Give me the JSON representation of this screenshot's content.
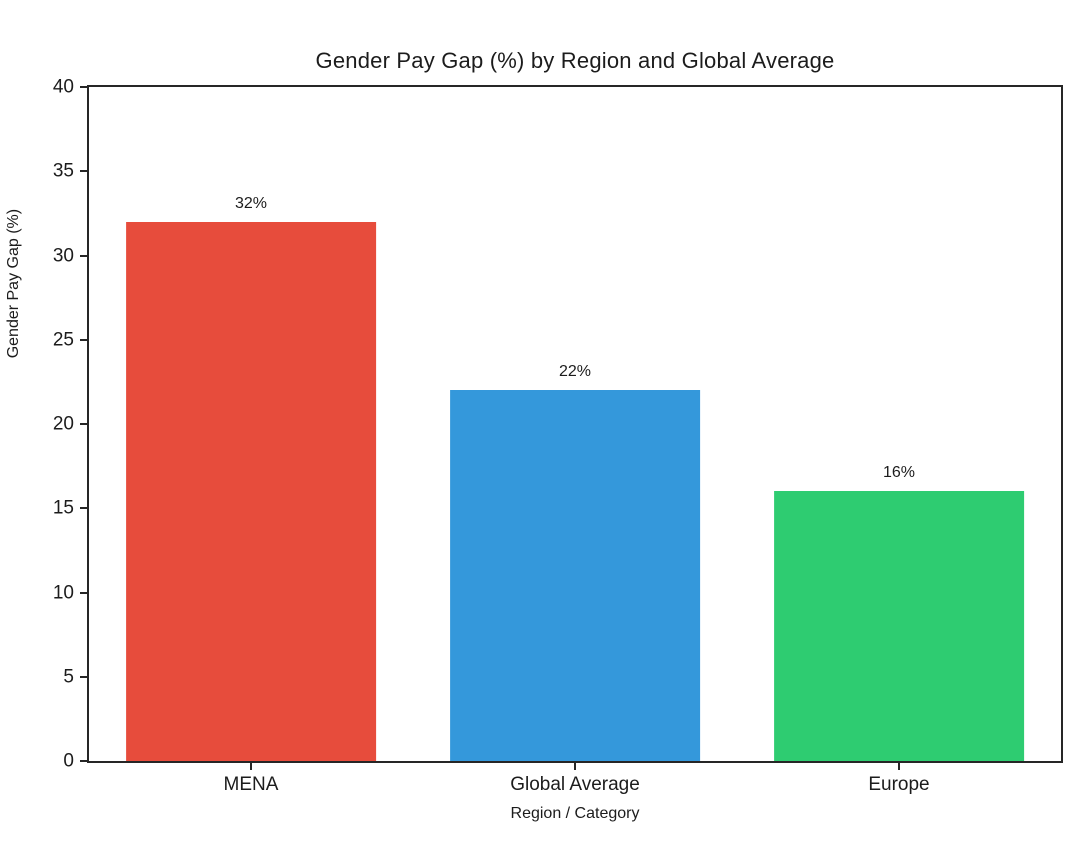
{
  "chart_data": {
    "type": "bar",
    "title": "Gender Pay Gap (%) by Region and Global Average",
    "xlabel": "Region / Category",
    "ylabel": "Gender Pay Gap (%)",
    "categories": [
      "MENA",
      "Global Average",
      "Europe"
    ],
    "values": [
      32,
      22,
      16
    ],
    "bar_value_labels": [
      "32%",
      "22%",
      "16%"
    ],
    "bar_colors": [
      "#e74c3c",
      "#3498db",
      "#2ecc71"
    ],
    "ylim": [
      0,
      40
    ],
    "yticks": [
      0,
      5,
      10,
      15,
      20,
      25,
      30,
      35,
      40
    ],
    "grid": false,
    "legend": "none",
    "spine_color": "#262626",
    "text_color": "#1c1c1c",
    "background_color": "#ffffff"
  }
}
